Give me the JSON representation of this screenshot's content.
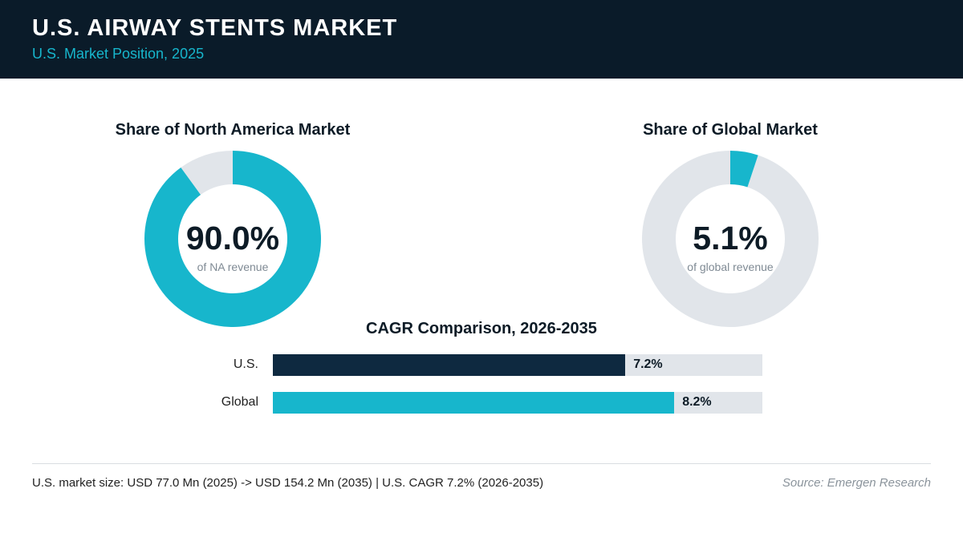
{
  "header": {
    "title": "U.S. AIRWAY STENTS MARKET",
    "subtitle": "U.S. Market Position, 2025"
  },
  "colors": {
    "header_bg": "#0a1b29",
    "accent": "#17b6cc",
    "navy": "#0e2940",
    "track": "#e1e5ea"
  },
  "chart_data": [
    {
      "type": "pie",
      "title": "Share of North America Market",
      "value": 90.0,
      "value_label": "90.0%",
      "caption": "of NA revenue",
      "color": "#17b6cc"
    },
    {
      "type": "pie",
      "title": "Share of Global Market",
      "value": 5.1,
      "value_label": "5.1%",
      "caption": "of global revenue",
      "color": "#17b6cc"
    },
    {
      "type": "bar",
      "orientation": "horizontal",
      "title": "CAGR Comparison, 2026-2035",
      "categories": [
        "U.S.",
        "Global"
      ],
      "values": [
        7.2,
        8.2
      ],
      "value_labels": [
        "7.2%",
        "8.2%"
      ],
      "colors": [
        "#0e2940",
        "#17b6cc"
      ],
      "xlim": [
        0,
        10
      ]
    }
  ],
  "footer": {
    "note": "U.S. market size: USD 77.0 Mn (2025) -> USD 154.2 Mn (2035)  |  U.S. CAGR 7.2% (2026-2035)",
    "source": "Source: Emergen Research"
  }
}
